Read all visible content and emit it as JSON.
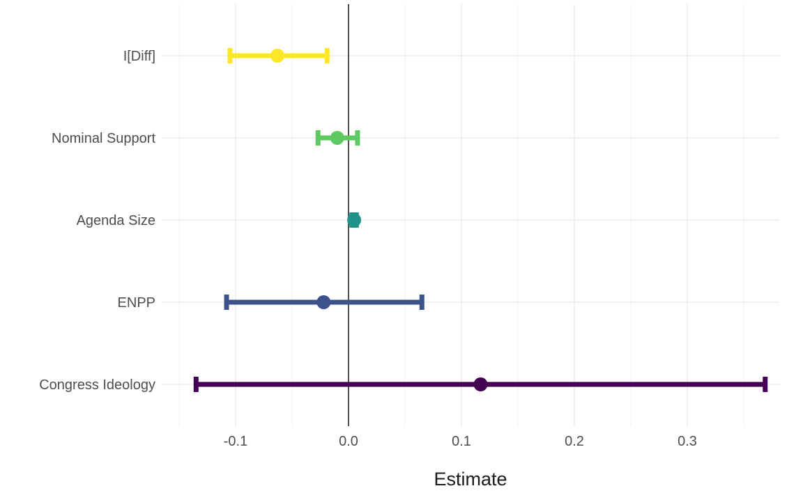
{
  "chart_data": {
    "type": "coefficient-plot",
    "xlabel": "Estimate",
    "ylabel": "",
    "title": "",
    "xlim": [
      -0.15,
      0.375
    ],
    "grid": true,
    "reference_line_x": 0,
    "x_ticks": [
      -0.1,
      0.0,
      0.1,
      0.2,
      0.3
    ],
    "x_tick_labels": [
      "-0.1",
      "0.0",
      "0.1",
      "0.2",
      "0.3"
    ],
    "series": [
      {
        "term": "I[Diff]",
        "estimate": -0.063,
        "lower": -0.105,
        "upper": -0.019,
        "color": "#fde725"
      },
      {
        "term": "Nominal Support",
        "estimate": -0.01,
        "lower": -0.027,
        "upper": 0.008,
        "color": "#5ec962"
      },
      {
        "term": "Agenda Size",
        "estimate": 0.005,
        "lower": 0.003,
        "upper": 0.007,
        "color": "#21918c"
      },
      {
        "term": "ENPP",
        "estimate": -0.022,
        "lower": -0.108,
        "upper": 0.065,
        "color": "#3b528b"
      },
      {
        "term": "Congress Ideology",
        "estimate": 0.117,
        "lower": -0.135,
        "upper": 0.369,
        "color": "#440154"
      }
    ]
  }
}
